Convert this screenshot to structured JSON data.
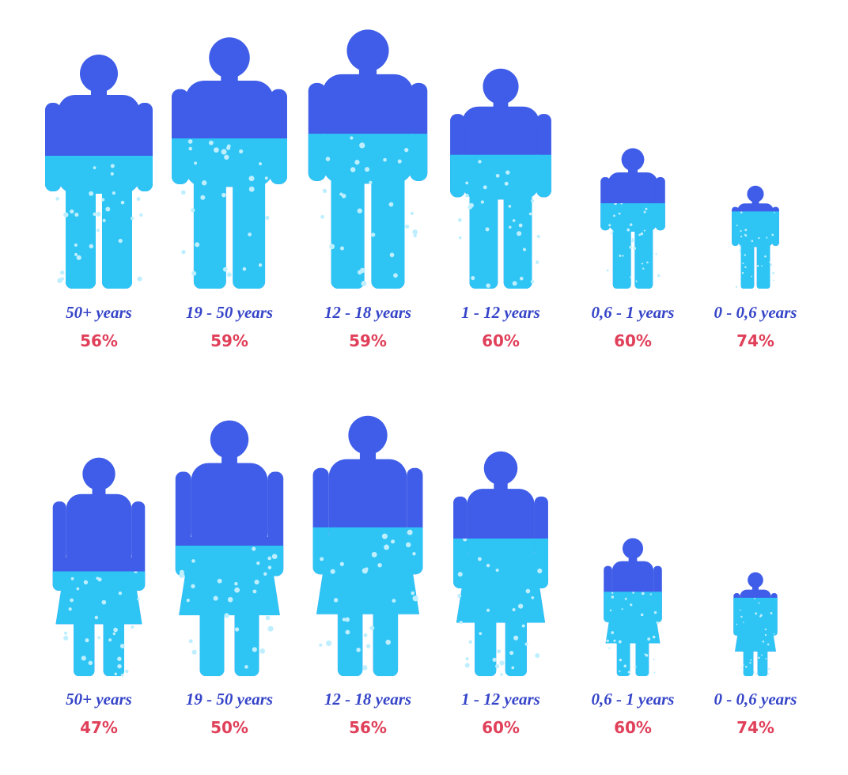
{
  "rows": [
    {
      "figures": [
        {
          "age": "50+ years",
          "water": "56%"
        },
        {
          "age": "19 - 50 years",
          "water": "59%"
        },
        {
          "age": "12 - 18 years",
          "water": "59%"
        },
        {
          "age": "1 - 12 years",
          "water": "60%"
        },
        {
          "age": "0,6 - 1 years",
          "water": "60%"
        },
        {
          "age": "0 - 0,6 years",
          "water": "74%"
        }
      ]
    },
    {
      "figures": [
        {
          "age": "50+ years",
          "water": "47%"
        },
        {
          "age": "19 - 50 years",
          "water": "50%"
        },
        {
          "age": "12 - 18 years",
          "water": "56%"
        },
        {
          "age": "1 - 12 years",
          "water": "60%"
        },
        {
          "age": "0,6 - 1 years",
          "water": "60%"
        },
        {
          "age": "0 - 0,6 years",
          "water": "74%"
        }
      ]
    }
  ]
}
